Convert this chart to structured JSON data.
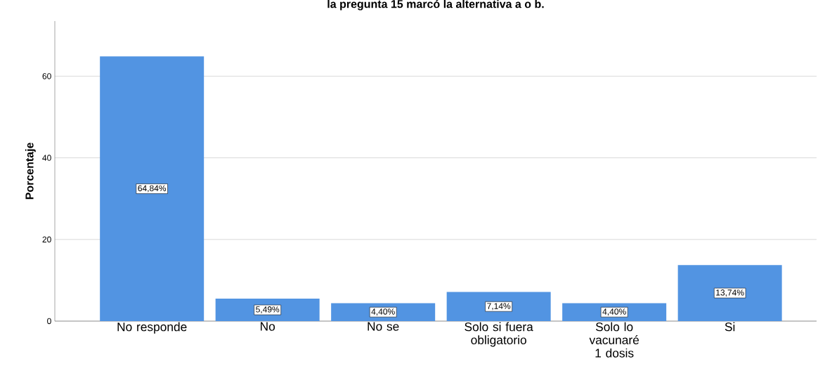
{
  "chart_data": {
    "type": "bar",
    "title": "la pregunta 15 marcó la alternativa a o b.",
    "ylabel": "Porcentaje",
    "categories": [
      "No responde",
      "No",
      "No se",
      "Solo si fuera obligatorio",
      "Solo lo vacunaré 1 dosis",
      "Si"
    ],
    "values": [
      64.84,
      5.49,
      4.4,
      7.14,
      4.4,
      13.74
    ],
    "value_labels": [
      "64,84%",
      "5,49%",
      "4,40%",
      "7,14%",
      "4,40%",
      "13,74%"
    ],
    "color": "#5294e2",
    "ylim": [
      0,
      73.5
    ],
    "yticks": [
      0,
      20,
      40,
      60
    ],
    "grid": "y"
  }
}
